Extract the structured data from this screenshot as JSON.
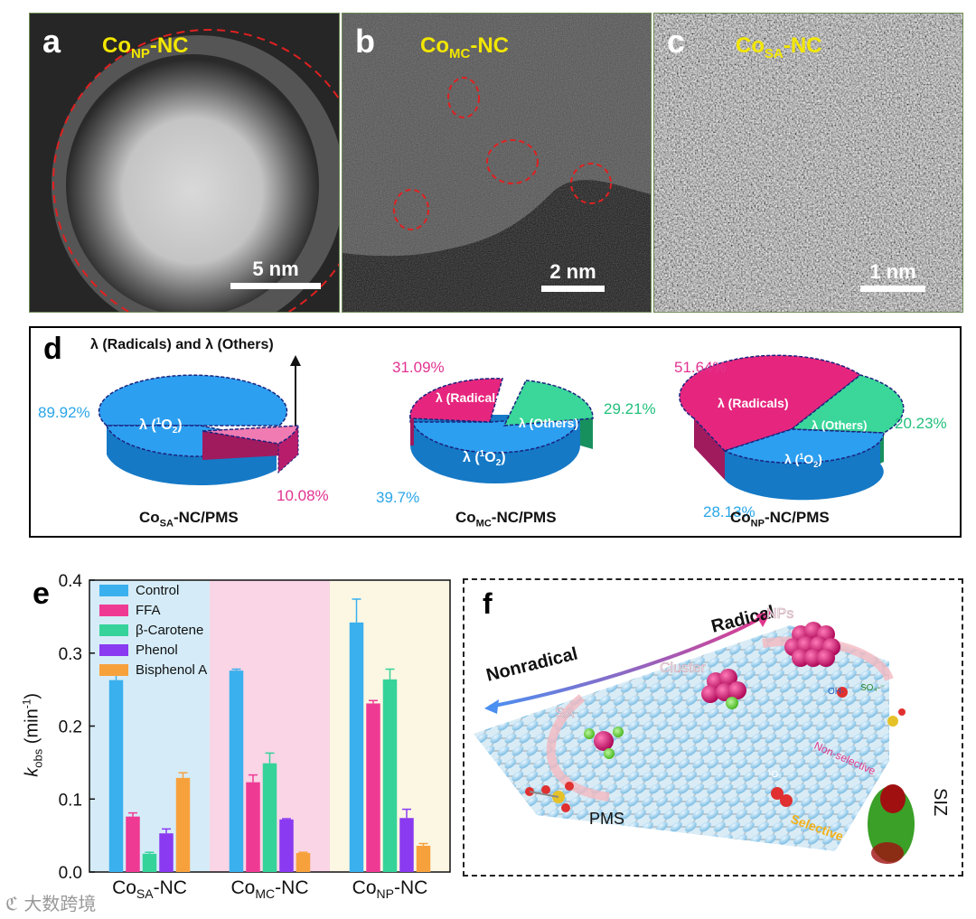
{
  "panel_a": {
    "letter": "a",
    "title": "Co",
    "title_sub": "NP",
    "title_suffix": "-NC",
    "scale": "5 nm"
  },
  "panel_b": {
    "letter": "b",
    "title": "Co",
    "title_sub": "MC",
    "title_suffix": "-NC",
    "scale": "2 nm"
  },
  "panel_c": {
    "letter": "c",
    "title": "Co",
    "title_sub": "SA",
    "title_suffix": "-NC",
    "scale": "1 nm"
  },
  "panel_d": {
    "letter": "d",
    "annotation": "λ (Radicals) and λ (Others)",
    "pies": [
      {
        "caption": "Co",
        "caption_sub": "SA",
        "caption_suffix": "-NC/PMS",
        "slices": [
          {
            "label": "λ (¹O₂)",
            "label_pre": "λ (",
            "label_sup": "1",
            "label_mid": "O",
            "label_sub": "2",
            "label_post": ")",
            "value": 89.92,
            "pct": "89.92%"
          },
          {
            "label": "",
            "value": 10.08,
            "pct": "10.08%"
          }
        ]
      },
      {
        "caption": "Co",
        "caption_sub": "MC",
        "caption_suffix": "-NC/PMS",
        "slices": [
          {
            "label": "λ (Radicals)",
            "value": 31.09,
            "pct": "31.09%"
          },
          {
            "label": "λ (Others)",
            "value": 29.21,
            "pct": "29.21%"
          },
          {
            "label": "λ (¹O₂)",
            "value": 39.7,
            "pct": "39.7%"
          }
        ]
      },
      {
        "caption": "Co",
        "caption_sub": "NP",
        "caption_suffix": "-NC/PMS",
        "slices": [
          {
            "label": "λ (Radicals)",
            "value": 51.64,
            "pct": "51.64%"
          },
          {
            "label": "λ (Others)",
            "value": 20.23,
            "pct": "20.23%"
          },
          {
            "label": "λ (¹O₂)",
            "value": 28.13,
            "pct": "28.13%"
          }
        ]
      }
    ]
  },
  "chart_data": {
    "type": "bar",
    "letter": "e",
    "ylabel_main": "k",
    "ylabel_sub": "obs",
    "ylabel_unit": " (min",
    "ylabel_sup": "-1",
    "ylabel_end": ")",
    "ylim": [
      0.0,
      0.4
    ],
    "yticks": [
      "0.0",
      "0.1",
      "0.2",
      "0.3",
      "0.4"
    ],
    "ytick_values": [
      0.0,
      0.1,
      0.2,
      0.3,
      0.4
    ],
    "categories": [
      {
        "main": "Co",
        "sub": "SA",
        "suffix": "-NC",
        "bg": "#d5ecf8"
      },
      {
        "main": "Co",
        "sub": "MC",
        "suffix": "-NC",
        "bg": "#f9d5e6"
      },
      {
        "main": "Co",
        "sub": "NP",
        "suffix": "-NC",
        "bg": "#fbf7e3"
      }
    ],
    "series": [
      {
        "name": "Control",
        "color": "#3ab0ee",
        "values": [
          0.263,
          0.276,
          0.342
        ],
        "errors": [
          0.012,
          0.002,
          0.032
        ]
      },
      {
        "name": "FFA",
        "color": "#ef3a94",
        "values": [
          0.076,
          0.123,
          0.231
        ],
        "errors": [
          0.005,
          0.01,
          0.004
        ]
      },
      {
        "name": "β-Carotene",
        "color": "#35d39a",
        "values": [
          0.025,
          0.149,
          0.264
        ],
        "errors": [
          0.002,
          0.014,
          0.014
        ]
      },
      {
        "name": "Phenol",
        "color": "#8a3af0",
        "values": [
          0.053,
          0.072,
          0.074
        ],
        "errors": [
          0.006,
          0.001,
          0.012
        ]
      },
      {
        "name": "Bisphenol A",
        "color": "#f7a13c",
        "values": [
          0.129,
          0.026,
          0.036
        ],
        "errors": [
          0.007,
          0.001,
          0.003
        ]
      }
    ],
    "legend_position": "top-left"
  },
  "panel_f": {
    "letter": "f",
    "radical": "Radical",
    "nonradical": "Nonradical",
    "nps": "NPs",
    "cluster": "Cluster",
    "sa": "SA",
    "pms": "PMS",
    "siz": "SIZ",
    "oh": "OH·",
    "so4": "SO₄·⁻",
    "o2": "¹O₂",
    "nonselective": "Non-selective",
    "selective": "Selective"
  },
  "watermark": "大数跨境",
  "colors": {
    "pie_blue": "#1f8fe0",
    "pie_pink": "#e8207a",
    "pie_green": "#2fd28f",
    "pct_blue": "#2aa6e8",
    "pct_pink": "#e23391",
    "pct_green": "#22c07c",
    "tem_title": "#f2e600"
  }
}
